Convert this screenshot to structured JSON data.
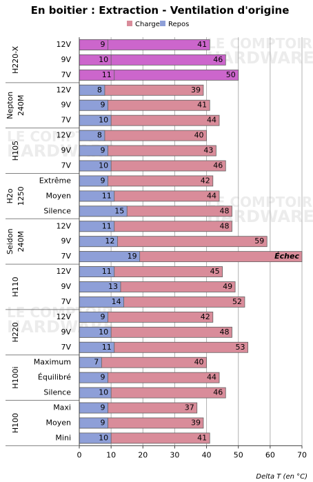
{
  "chart_data": {
    "type": "bar",
    "title": "En boitier : Extraction - Ventilation d'origine",
    "xlabel": "Delta T (en °C)",
    "xlim": [
      0,
      70
    ],
    "xticks": [
      0,
      10,
      20,
      30,
      40,
      50,
      60,
      70
    ],
    "grid": "vertical",
    "legend_position": "top",
    "series": [
      {
        "name": "Charge",
        "color": "#d98c9a"
      },
      {
        "name": "Repos",
        "color": "#8e9fd8"
      }
    ],
    "groups": [
      {
        "name": "H220-X",
        "highlight": true,
        "rows": [
          {
            "label": "12V",
            "repos": 9,
            "charge": 41
          },
          {
            "label": "9V",
            "repos": 10,
            "charge": 46
          },
          {
            "label": "7V",
            "repos": 11,
            "charge": 50
          }
        ]
      },
      {
        "name": "Nepton 240M",
        "rows": [
          {
            "label": "12V",
            "repos": 8,
            "charge": 39
          },
          {
            "label": "9V",
            "repos": 9,
            "charge": 41
          },
          {
            "label": "7V",
            "repos": 10,
            "charge": 44
          }
        ]
      },
      {
        "name": "H105",
        "rows": [
          {
            "label": "12V",
            "repos": 8,
            "charge": 40
          },
          {
            "label": "9V",
            "repos": 9,
            "charge": 43
          },
          {
            "label": "7V",
            "repos": 10,
            "charge": 46
          }
        ]
      },
      {
        "name": "H2o 1250",
        "rows": [
          {
            "label": "Extrême",
            "repos": 9,
            "charge": 42
          },
          {
            "label": "Moyen",
            "repos": 11,
            "charge": 44
          },
          {
            "label": "Silence",
            "repos": 15,
            "charge": 48
          }
        ]
      },
      {
        "name": "Seidon 240M",
        "rows": [
          {
            "label": "12V",
            "repos": 11,
            "charge": 48
          },
          {
            "label": "9V",
            "repos": 12,
            "charge": 59
          },
          {
            "label": "7V",
            "repos": 19,
            "charge": 70,
            "charge_label": "Échec"
          }
        ]
      },
      {
        "name": "H110",
        "rows": [
          {
            "label": "12V",
            "repos": 11,
            "charge": 45
          },
          {
            "label": "9V",
            "repos": 13,
            "charge": 49
          },
          {
            "label": "7V",
            "repos": 14,
            "charge": 52
          }
        ]
      },
      {
        "name": "H220",
        "rows": [
          {
            "label": "12V",
            "repos": 9,
            "charge": 42
          },
          {
            "label": "9V",
            "repos": 10,
            "charge": 48
          },
          {
            "label": "7V",
            "repos": 11,
            "charge": 53
          }
        ]
      },
      {
        "name": "H100i",
        "rows": [
          {
            "label": "Maximum",
            "repos": 7,
            "charge": 40
          },
          {
            "label": "Équilibré",
            "repos": 9,
            "charge": 44
          },
          {
            "label": "Silence",
            "repos": 10,
            "charge": 46
          }
        ]
      },
      {
        "name": "H100",
        "rows": [
          {
            "label": "Maxi",
            "repos": 9,
            "charge": 37
          },
          {
            "label": "Moyen",
            "repos": 9,
            "charge": 39
          },
          {
            "label": "Mini",
            "repos": 10,
            "charge": 41
          }
        ]
      }
    ]
  },
  "colors": {
    "charge": "#d98c9a",
    "repos": "#8e9fd8",
    "highlight": "#cc66cc",
    "grid": "#b0b0b0"
  },
  "watermark": {
    "line1": "LE COMPTOIR",
    "line2": "HARDWARE"
  }
}
